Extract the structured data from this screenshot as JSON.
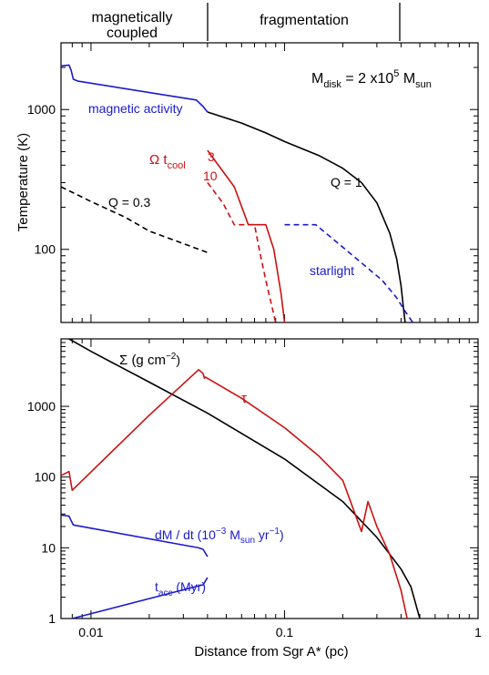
{
  "header": {
    "regions": [
      "magnetically",
      "coupled",
      "fragmentation"
    ]
  },
  "colors": {
    "black": "#000000",
    "blue": "#1a1acc",
    "red": "#cc1111"
  },
  "chart_data": [
    {
      "type": "line",
      "xscale": "log",
      "yscale": "log",
      "xlim": [
        0.007,
        1
      ],
      "ylim": [
        30,
        3000
      ],
      "ylabel": "Temperature (K)",
      "yticks": [
        100,
        1000
      ],
      "ytick_labels": [
        "100",
        "1000"
      ],
      "annotation": {
        "main": "M",
        "sub1": "disk",
        "eq": " = 2 x10",
        "sup": "5",
        "sp": " M",
        "sub2": "sun"
      },
      "series": [
        {
          "name": "magnetic activity",
          "color": "blue",
          "dash": false,
          "points": [
            [
              0.007,
              2050
            ],
            [
              0.0077,
              2080
            ],
            [
              0.0079,
              1900
            ],
            [
              0.0081,
              1650
            ],
            [
              0.0085,
              1600
            ],
            [
              0.035,
              1170
            ],
            [
              0.038,
              1050
            ],
            [
              0.04,
              960
            ]
          ]
        },
        {
          "name": "Q = 1",
          "color": "black",
          "dash": false,
          "points": [
            [
              0.04,
              960
            ],
            [
              0.06,
              800
            ],
            [
              0.08,
              680
            ],
            [
              0.1,
              590
            ],
            [
              0.15,
              470
            ],
            [
              0.2,
              380
            ],
            [
              0.25,
              300
            ],
            [
              0.3,
              215
            ],
            [
              0.35,
              130
            ],
            [
              0.38,
              85
            ],
            [
              0.4,
              55
            ],
            [
              0.41,
              40
            ],
            [
              0.42,
              30
            ]
          ]
        },
        {
          "name": "Q = 0.3",
          "color": "black",
          "dash": true,
          "points": [
            [
              0.007,
              280
            ],
            [
              0.01,
              220
            ],
            [
              0.015,
              170
            ],
            [
              0.02,
              135
            ],
            [
              0.03,
              110
            ],
            [
              0.04,
              95
            ]
          ]
        },
        {
          "name": "3",
          "color": "red",
          "dash": false,
          "points": [
            [
              0.04,
              510
            ],
            [
              0.055,
              280
            ],
            [
              0.065,
              150
            ],
            [
              0.08,
              150
            ],
            [
              0.088,
              100
            ],
            [
              0.096,
              48
            ],
            [
              0.1,
              30
            ]
          ]
        },
        {
          "name": "10",
          "color": "red",
          "dash": true,
          "points": [
            [
              0.04,
              300
            ],
            [
              0.048,
              215
            ],
            [
              0.055,
              150
            ],
            [
              0.07,
              150
            ],
            [
              0.074,
              100
            ],
            [
              0.08,
              60
            ],
            [
              0.09,
              30
            ]
          ]
        },
        {
          "name": "starlight",
          "color": "blue",
          "dash": true,
          "points": [
            [
              0.1,
              150
            ],
            [
              0.145,
              150
            ],
            [
              0.19,
              110
            ],
            [
              0.25,
              80
            ],
            [
              0.32,
              60
            ],
            [
              0.38,
              45
            ],
            [
              0.42,
              36
            ],
            [
              0.46,
              30
            ]
          ]
        }
      ],
      "labels": {
        "magnetic_activity": "magnetic activity",
        "q1": "Q = 1",
        "q03": "Q = 0.3",
        "omega_main": "Ω t",
        "omega_sub": "cool",
        "omega_3": "3",
        "omega_10": "10",
        "starlight": "starlight"
      }
    },
    {
      "type": "line",
      "xscale": "log",
      "yscale": "log",
      "xlim": [
        0.007,
        1
      ],
      "ylim": [
        1,
        9000
      ],
      "xlabel": "Distance from Sgr A* (pc)",
      "xticks": [
        0.01,
        0.1,
        1
      ],
      "xtick_labels": [
        "0.01",
        "0.1",
        "1"
      ],
      "yticks": [
        1,
        10,
        100,
        1000
      ],
      "ytick_labels": [
        "1",
        "10",
        "100",
        "1000"
      ],
      "series": [
        {
          "name": "Σ",
          "color": "black",
          "dash": false,
          "points": [
            [
              0.0077,
              9000
            ],
            [
              0.01,
              6000
            ],
            [
              0.02,
              2200
            ],
            [
              0.04,
              800
            ],
            [
              0.1,
              180
            ],
            [
              0.2,
              45
            ],
            [
              0.3,
              14
            ],
            [
              0.4,
              5
            ],
            [
              0.45,
              2.8
            ],
            [
              0.5,
              1
            ]
          ]
        },
        {
          "name": "τ",
          "color": "red",
          "dash": false,
          "points": [
            [
              0.007,
              105
            ],
            [
              0.0077,
              120
            ],
            [
              0.008,
              65
            ],
            [
              0.02,
              750
            ],
            [
              0.036,
              3300
            ],
            [
              0.038,
              2900
            ],
            [
              0.0385,
              2500
            ],
            [
              0.039,
              2600
            ],
            [
              0.06,
              1300
            ],
            [
              0.1,
              500
            ],
            [
              0.15,
              200
            ],
            [
              0.2,
              90
            ],
            [
              0.25,
              17
            ],
            [
              0.27,
              45
            ],
            [
              0.3,
              20
            ],
            [
              0.35,
              8
            ],
            [
              0.4,
              2.5
            ],
            [
              0.43,
              1
            ]
          ]
        },
        {
          "name": "dM / dt",
          "color": "blue",
          "dash": false,
          "points": [
            [
              0.007,
              29
            ],
            [
              0.0077,
              28
            ],
            [
              0.0079,
              24
            ],
            [
              0.0081,
              21
            ],
            [
              0.036,
              10
            ],
            [
              0.038,
              9.5
            ],
            [
              0.04,
              7.5
            ]
          ]
        },
        {
          "name": "t_acc",
          "color": "blue",
          "dash": false,
          "points": [
            [
              0.008,
              1
            ],
            [
              0.036,
              2.9
            ],
            [
              0.038,
              3
            ],
            [
              0.04,
              3.8
            ]
          ]
        }
      ],
      "labels": {
        "sigma": "Σ (g cm",
        "sigma_sup": "−2",
        "sigma_close": ")",
        "tau": "τ",
        "mdot_main": "dM / dt  (10",
        "mdot_sup1": "−3",
        "mdot_mid": " M",
        "mdot_sub": "sun",
        "mdot_unit": " yr",
        "mdot_sup2": "−1",
        "mdot_close": ")",
        "tacc_main": "t",
        "tacc_sub": "acc",
        "tacc_unit": " (Myr)"
      }
    }
  ]
}
